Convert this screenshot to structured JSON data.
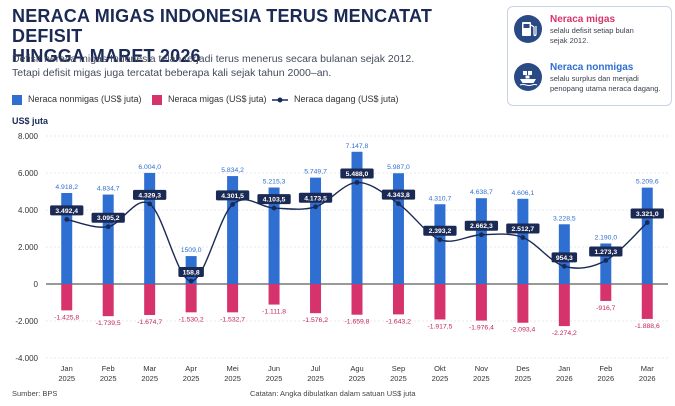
{
  "header": {
    "title_lines": [
      "NERACA MIGAS INDONESIA TERUS MENCATAT DEFISIT",
      "HINGGA MARET 2026"
    ],
    "subtitle_lines": [
      "Defisit neraca migas Indonesia telah terjadi terus menerus secara bulanan sejak 2012.",
      "Tetapi defisit migas juga tercatat beberapa kali sejak tahun 2000–an."
    ]
  },
  "info_box": {
    "migas": {
      "title": "Neraca migas",
      "text_lines": [
        "selalu defisit setiap bulan",
        "sejak 2012."
      ],
      "icon": "fuel-pump-icon",
      "color": "#d6336c"
    },
    "nonmigas": {
      "title": "Neraca nonmigas",
      "text_lines": [
        "selalu surplus dan menjadi",
        "penopang utama neraca dagang."
      ],
      "icon": "cargo-ship-icon",
      "color": "#2f6fd1"
    }
  },
  "legend": {
    "nonmigas": "Neraca nonmigas (US$ juta)",
    "migas": "Neraca migas (US$ juta)",
    "dagang": "Neraca dagang (US$ juta)"
  },
  "footer": {
    "source": "Sumber: BPS",
    "note": "Catatan: Angka dibulatkan dalam satuan US$ juta"
  },
  "chart_data": {
    "type": "bar",
    "ylabel": "US$ juta",
    "ylim": [
      -4000,
      8000
    ],
    "yticks": [
      -4000,
      -2000,
      0,
      2000,
      4000,
      6000,
      8000
    ],
    "ytick_labels": [
      "-4.000",
      "-2.000",
      "0",
      "2.000",
      "4.000",
      "6.000",
      "8.000"
    ],
    "grid": true,
    "legend_position": "top-left",
    "categories": [
      {
        "month": "Jan",
        "year": "2025"
      },
      {
        "month": "Feb",
        "year": "2025"
      },
      {
        "month": "Mar",
        "year": "2025"
      },
      {
        "month": "Apr",
        "year": "2025"
      },
      {
        "month": "Mei",
        "year": "2025"
      },
      {
        "month": "Jun",
        "year": "2025"
      },
      {
        "month": "Jul",
        "year": "2025"
      },
      {
        "month": "Agu",
        "year": "2025"
      },
      {
        "month": "Sep",
        "year": "2025"
      },
      {
        "month": "Okt",
        "year": "2025"
      },
      {
        "month": "Nov",
        "year": "2025"
      },
      {
        "month": "Des",
        "year": "2025"
      },
      {
        "month": "Jan",
        "year": "2026"
      },
      {
        "month": "Feb",
        "year": "2026"
      },
      {
        "month": "Mar",
        "year": "2026"
      }
    ],
    "series": [
      {
        "name": "Neraca nonmigas (US$ juta)",
        "color": "#2f6fd1",
        "values": [
          4918.2,
          4834.7,
          6004.0,
          1509.0,
          5834.2,
          5215.3,
          5749.7,
          7147.8,
          5987.0,
          4310.7,
          4638.7,
          4606.1,
          3228.5,
          2190.0,
          5209.6
        ],
        "labels": [
          "4.918,2",
          "4.834,7",
          "6.004,0",
          "1509,0",
          "5.834,2",
          "5.215,3",
          "5.749,7",
          "7.147,8",
          "5.987,0",
          "4.310,7",
          "4.638,7",
          "4.606,1",
          "3.228,5",
          "2.190,0",
          "5.209,6"
        ]
      },
      {
        "name": "Neraca migas (US$ juta)",
        "color": "#d6336c",
        "values": [
          -1425.8,
          -1739.5,
          -1674.7,
          -1530.2,
          -1532.7,
          -1111.8,
          -1576.2,
          -1659.8,
          -1643.2,
          -1917.5,
          -1976.4,
          -2093.4,
          -2274.2,
          -916.7,
          -1888.6
        ],
        "labels": [
          "-1.425,8",
          "-1.739,5",
          "-1.674,7",
          "-1.530,2",
          "-1.532,7",
          "-1.111,8",
          "-1.576,2",
          "-1.659,8",
          "-1.643,2",
          "-1.917,5",
          "-1.976,4",
          "-2.093,4",
          "-2.274,2",
          "-916,7",
          "-1.888,6"
        ]
      },
      {
        "name": "Neraca dagang (US$ juta)",
        "type": "line",
        "color": "#1b2a55",
        "values": [
          3492.4,
          3095.2,
          4329.3,
          158.8,
          4301.5,
          4103.5,
          4173.5,
          5488.0,
          4343.8,
          2393.2,
          2662.3,
          2512.7,
          954.3,
          1273.3,
          3321.0
        ],
        "labels": [
          "3.492,4",
          "3.095,2",
          "4.329,3",
          "158,8",
          "4.301,5",
          "4.103,5",
          "4.173,5",
          "5.488,0",
          "4.343,8",
          "2.393,2",
          "2.662,3",
          "2.512,7",
          "954,3",
          "1.273,3",
          "3.321,0"
        ]
      }
    ]
  }
}
